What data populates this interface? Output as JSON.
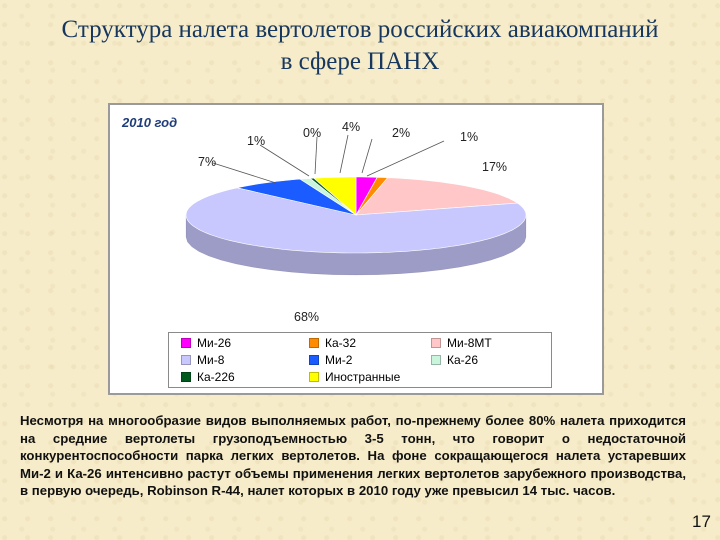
{
  "slide": {
    "title": "Структура налета вертолетов российских авиакомпаний в сфере ПАНХ",
    "body": "Несмотря на многообразие видов выполняемых работ, по-прежнему более 80% налета приходится на средние вертолеты грузоподъемностью 3-5 тонн, что говорит о недостаточной конкурентоспособности парка легких вертолетов. На фоне сокращающегося налета устаревших Ми-2 и Ка-26 интенсивно растут объемы применения легких вертолетов зарубежного производства, в первую очередь, Robinson R-44, налет которых в 2010 году уже превысил 14 тыс. часов.",
    "page_number": "17"
  },
  "chart_data": {
    "type": "pie",
    "subtitle": "2010 год",
    "series": [
      {
        "name": "Ми-26",
        "value": 2,
        "label": "2%",
        "color": "#ff00ff"
      },
      {
        "name": "Ка-32",
        "value": 1,
        "label": "1%",
        "color": "#ff8c00"
      },
      {
        "name": "Ми-8МТ",
        "value": 17,
        "label": "17%",
        "color": "#ffc7c7"
      },
      {
        "name": "Ми-8",
        "value": 68,
        "label": "68%",
        "color": "#c8c8ff"
      },
      {
        "name": "Ми-2",
        "value": 7,
        "label": "7%",
        "color": "#1a5cff"
      },
      {
        "name": "Ка-26",
        "value": 1,
        "label": "1%",
        "color": "#c8f5dc"
      },
      {
        "name": "Ка-226",
        "value": 0,
        "label": "0%",
        "color": "#005a1e"
      },
      {
        "name": "Иностранные",
        "value": 4,
        "label": "4%",
        "color": "#ffff00"
      }
    ],
    "legend_position": "bottom"
  }
}
